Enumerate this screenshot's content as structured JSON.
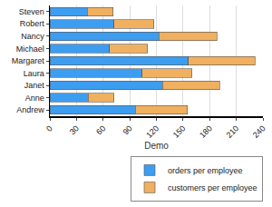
{
  "chart_data": {
    "type": "bar",
    "orientation": "horizontal",
    "stacked": true,
    "x_label": "Demo",
    "categories": [
      "Andrew",
      "Anne",
      "Janet",
      "Laura",
      "Margaret",
      "Michael",
      "Nancy",
      "Robert",
      "Steven"
    ],
    "series": [
      {
        "name": "orders per employee",
        "color": "#3d9df0",
        "values": [
          96,
          43,
          127,
          104,
          156,
          67,
          123,
          72,
          42
        ]
      },
      {
        "name": "customers per employee",
        "color": "#f0b060",
        "values": [
          59,
          29,
          64,
          56,
          75,
          43,
          65,
          45,
          29
        ]
      }
    ],
    "xlim": [
      0,
      240
    ],
    "xticks": [
      0,
      30,
      60,
      90,
      120,
      150,
      180,
      210,
      240
    ],
    "grid": true,
    "legend": "bottom"
  }
}
